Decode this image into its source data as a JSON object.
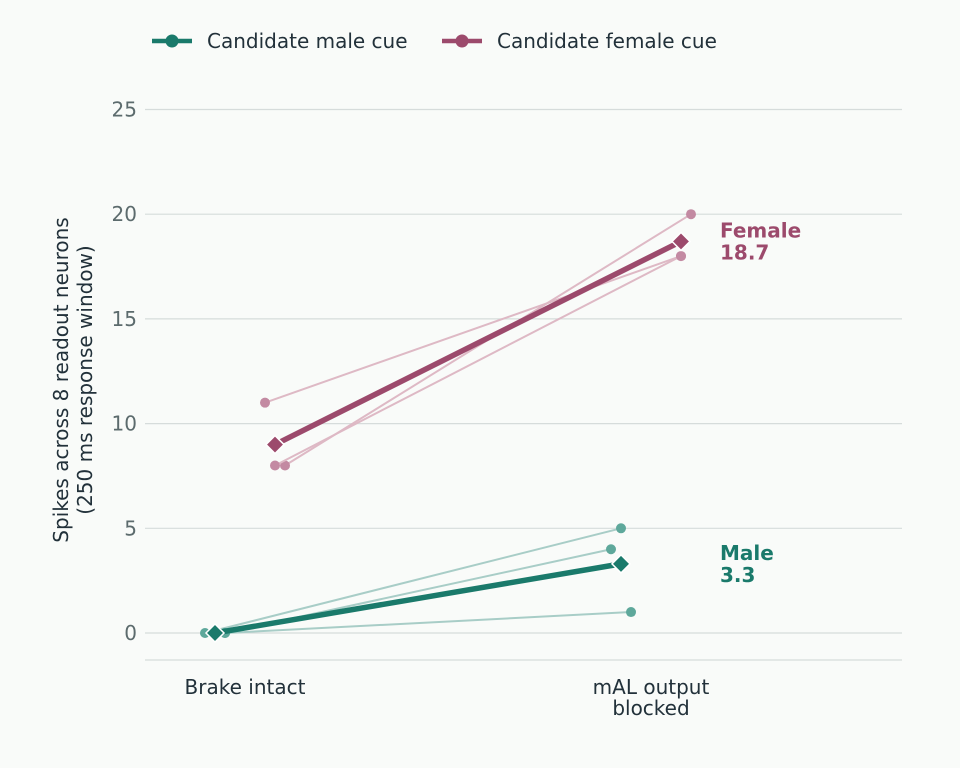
{
  "chart_data": {
    "type": "line",
    "categories": [
      "Brake intact",
      "mAL output\nblocked"
    ],
    "ylabel_lines": [
      "Spikes across 8 readout neurons",
      "(250 ms response window)"
    ],
    "ylim": [
      -1.3,
      25.5
    ],
    "yticks": [
      0,
      5,
      10,
      15,
      20,
      25
    ],
    "grid": true,
    "legend_position": "top-left",
    "series": [
      {
        "name": "Candidate male cue",
        "color": "#1a7a6b",
        "light_color": "#a8cdc7",
        "dot_color": "#5ea89b",
        "mean": [
          0,
          3.3
        ],
        "end_label": [
          "Male",
          "3.3"
        ],
        "individuals": [
          [
            0,
            5
          ],
          [
            0,
            4
          ],
          [
            0,
            1
          ]
        ]
      },
      {
        "name": "Candidate female cue",
        "color": "#9c4a6c",
        "light_color": "#deb9c5",
        "dot_color": "#c38aa2",
        "mean": [
          9,
          18.7
        ],
        "end_label": [
          "Female",
          "18.7"
        ],
        "individuals": [
          [
            11,
            18
          ],
          [
            8,
            20
          ],
          [
            8,
            18
          ]
        ]
      }
    ]
  }
}
